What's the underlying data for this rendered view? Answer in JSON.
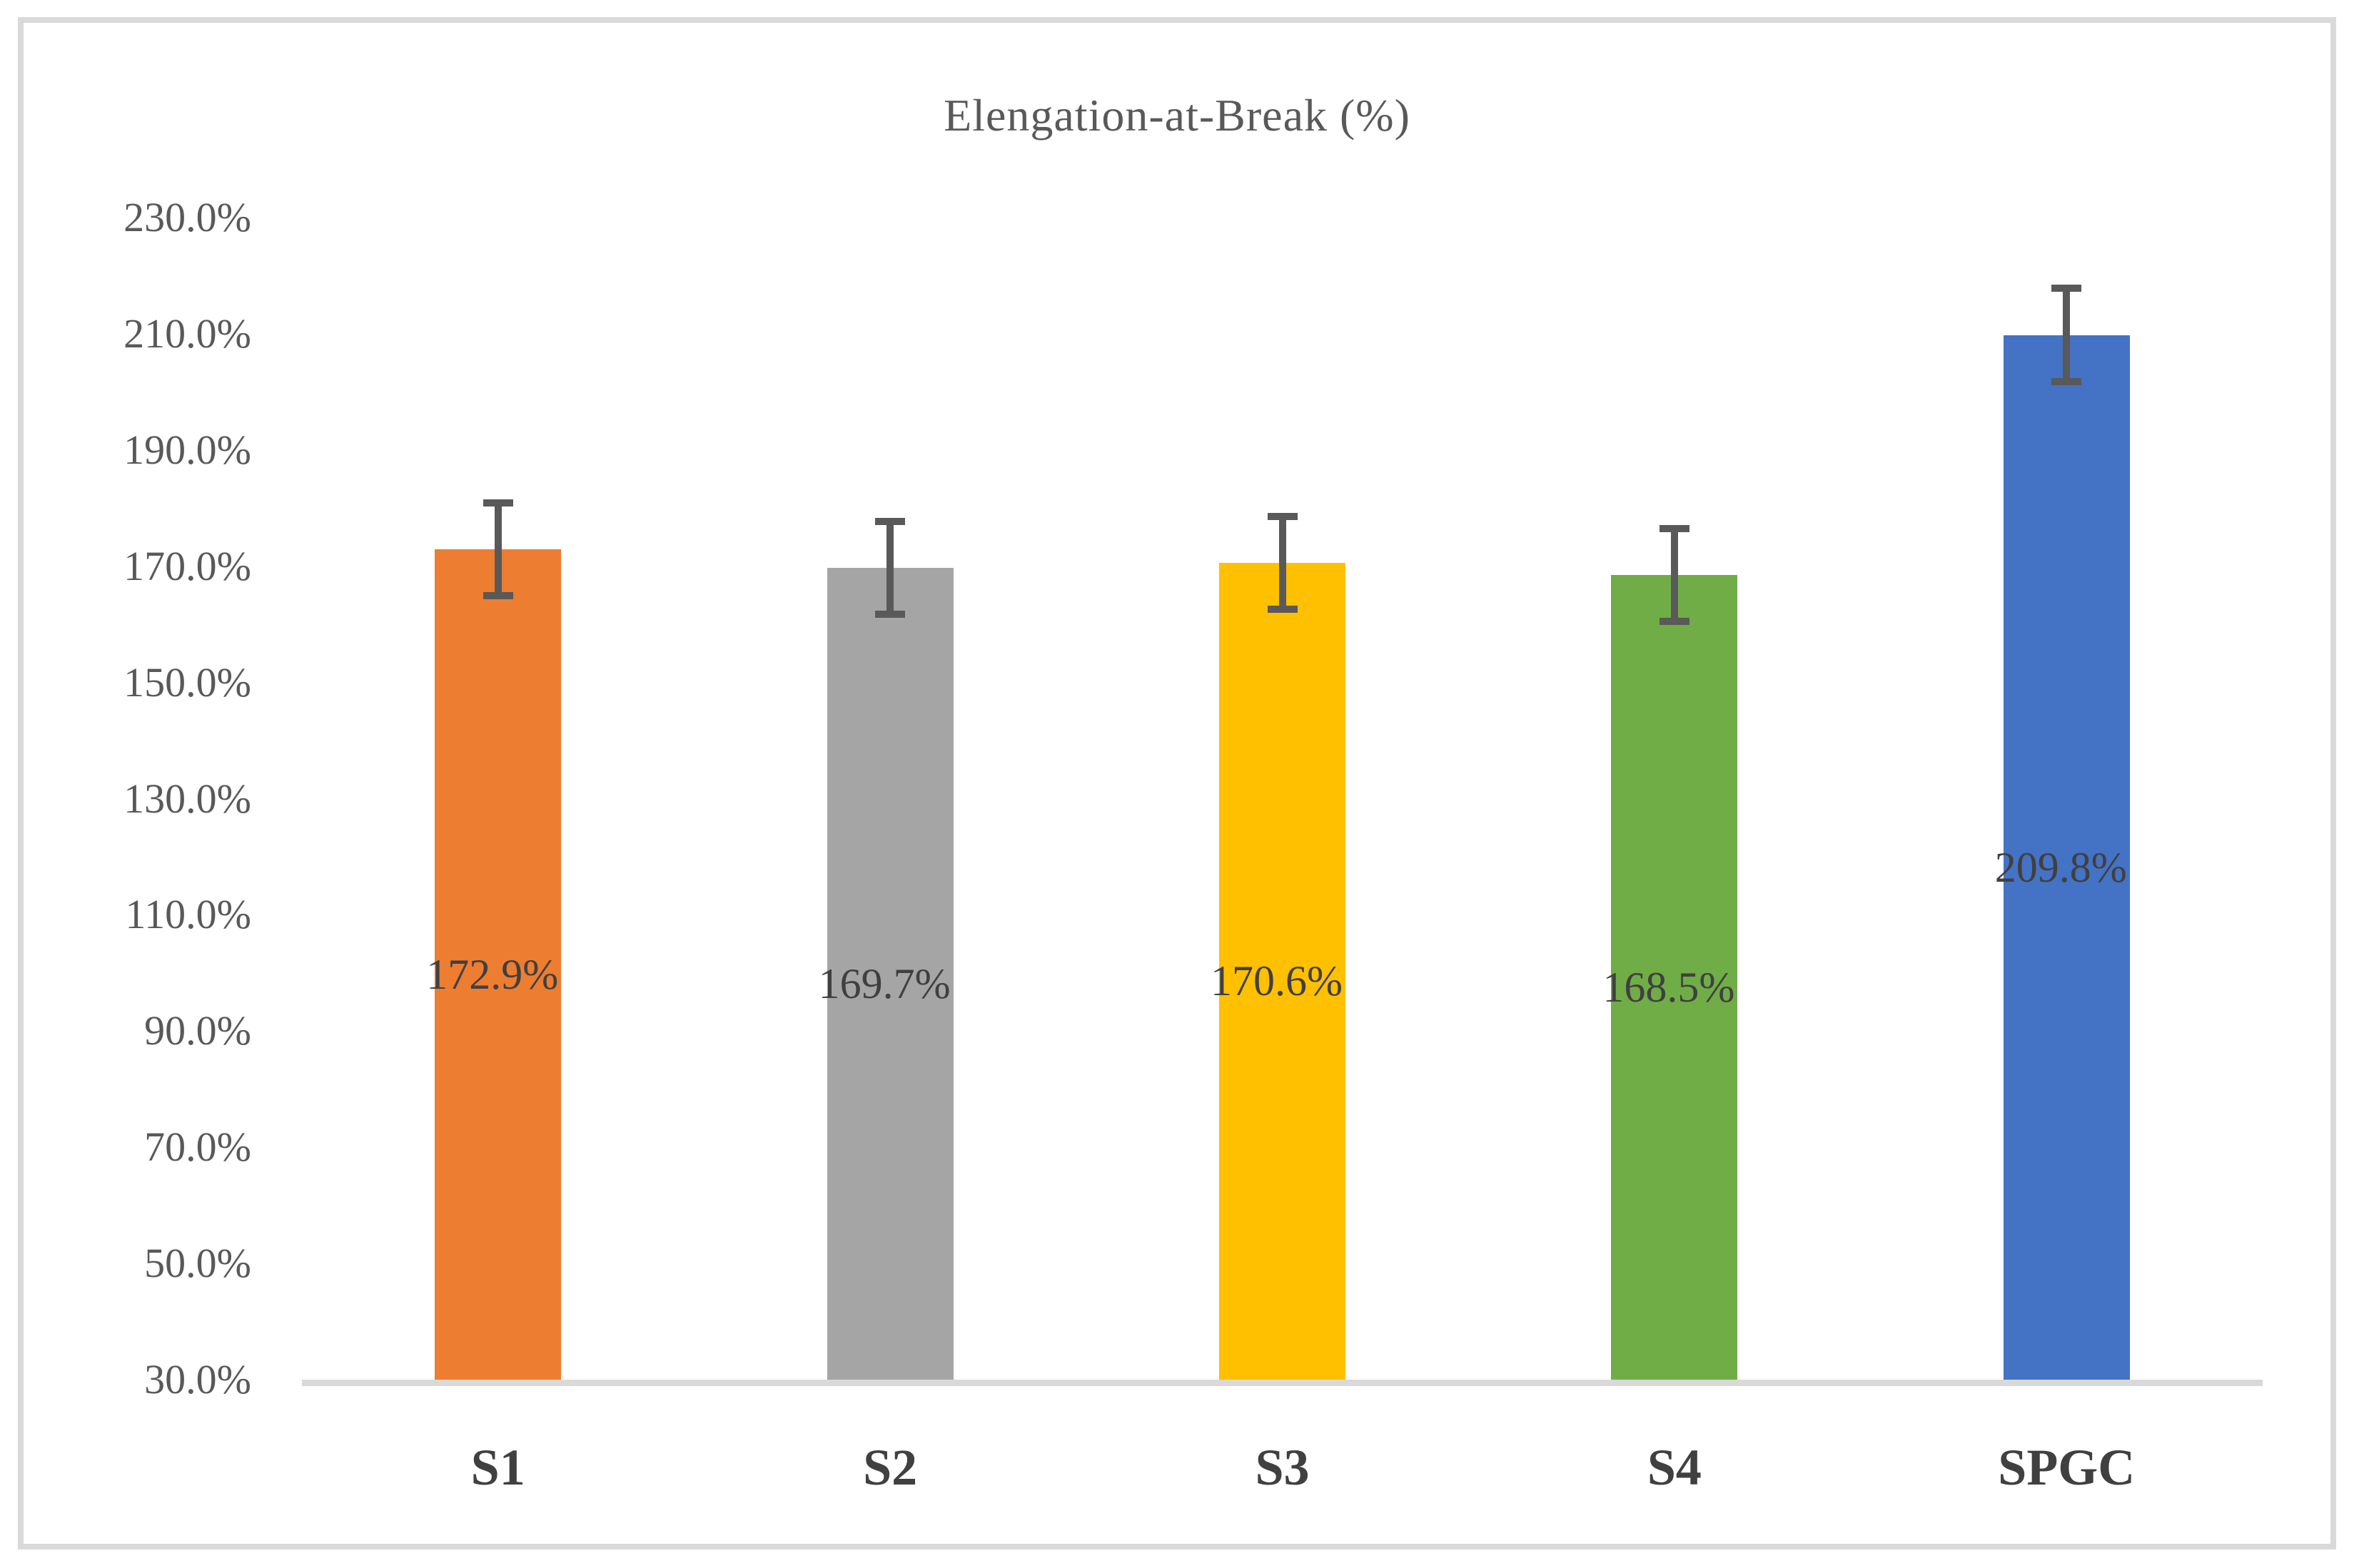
{
  "frame": {
    "border_color": "#D9D9D9",
    "background": "#ffffff"
  },
  "chart_data": {
    "type": "bar",
    "title": "Elengation-at-Break (%)",
    "title_color": "#595959",
    "categories": [
      "S1",
      "S2",
      "S3",
      "S4",
      "SPGC"
    ],
    "values": [
      172.9,
      169.7,
      170.6,
      168.5,
      209.8
    ],
    "data_labels": [
      "172.9%",
      "169.7%",
      "170.6%",
      "168.5%",
      "209.8%"
    ],
    "data_label_color": "#404040",
    "bar_colors": [
      "#ED7D31",
      "#A5A5A5",
      "#FFC000",
      "#70AD47",
      "#4472C4"
    ],
    "error_bars": {
      "plus": [
        8,
        8,
        8,
        8,
        8
      ],
      "minus": [
        8,
        8,
        8,
        8,
        8
      ],
      "color": "#595959"
    },
    "y_axis": {
      "min": 30,
      "max": 230,
      "step": 20,
      "tick_labels": [
        "230.0%",
        "210.0%",
        "190.0%",
        "170.0%",
        "150.0%",
        "130.0%",
        "110.0%",
        "90.0%",
        "70.0%",
        "50.0%",
        "30.0%"
      ],
      "tick_color": "#595959"
    },
    "x_axis": {
      "line_color": "#D9D9D9",
      "category_color": "#404040"
    },
    "grid": false,
    "legend": false,
    "data_label_position": "center"
  }
}
